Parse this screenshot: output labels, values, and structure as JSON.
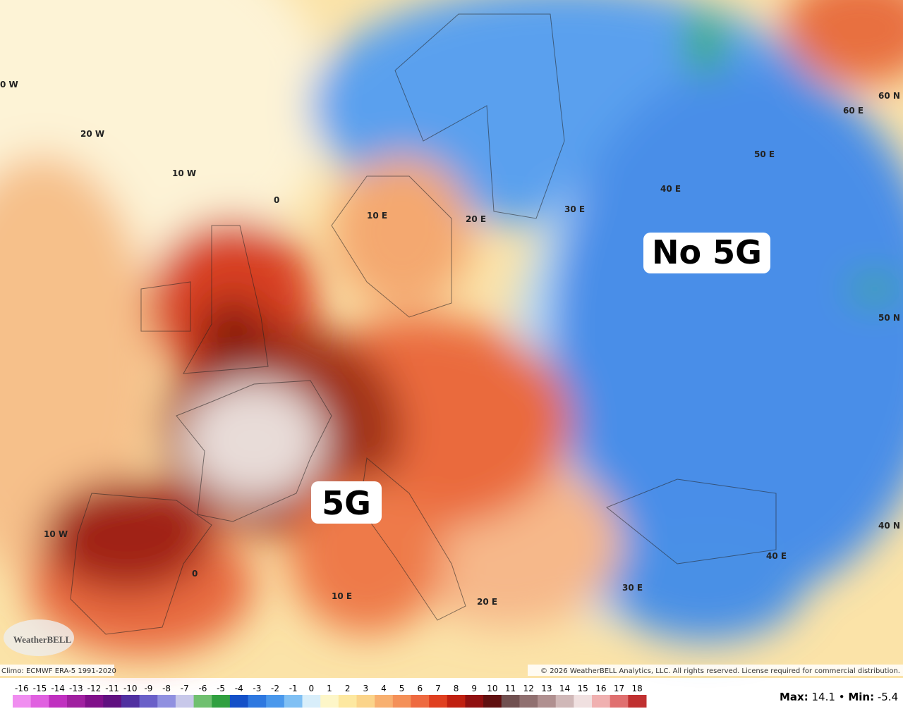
{
  "map": {
    "grid_labels": [
      "0 W",
      "20 W",
      "10 W",
      "0",
      "10 E",
      "20 E",
      "30 E",
      "40 E",
      "50 E",
      "60 E",
      "60 N",
      "50 N",
      "40 N",
      "10 W",
      "0",
      "10 E",
      "20 E",
      "30 E",
      "40 E"
    ],
    "annotations": [
      "No 5G",
      "5G"
    ],
    "logo": "WeatherBELL",
    "climo": "Climo: ECMWF ERA-5 1991-2020",
    "copyright": "© 2026 WeatherBELL Analytics, LLC. All rights reserved. License required for commercial distribution."
  },
  "colorbar": {
    "ticks": [
      -16,
      -15,
      -14,
      -13,
      -12,
      -11,
      -10,
      -9,
      -8,
      -7,
      -6,
      -5,
      -4,
      -3,
      -2,
      -1,
      0,
      1,
      2,
      3,
      4,
      5,
      6,
      7,
      8,
      9,
      10,
      11,
      12,
      13,
      14,
      15,
      16,
      17,
      18
    ],
    "colors": [
      "#f08ef0",
      "#e060e0",
      "#c030c0",
      "#a020a0",
      "#80108a",
      "#601080",
      "#5030a0",
      "#6a60c8",
      "#9090e0",
      "#c8c8ea",
      "#70c070",
      "#30a040",
      "#1450c8",
      "#2e78e0",
      "#4a98ec",
      "#80c0f4",
      "#d8eefa",
      "#fdf6c8",
      "#fde8a0",
      "#fbd48a",
      "#f8b070",
      "#f49058",
      "#ee6a40",
      "#e04020",
      "#c02010",
      "#901010",
      "#601010",
      "#705050",
      "#907070",
      "#b09090",
      "#d0b8b8",
      "#f0e0e0",
      "#f0b0b0",
      "#e07070",
      "#c03030"
    ]
  },
  "stats": {
    "max": {
      "label": "Max:",
      "value": 14.1
    },
    "min": {
      "label": "Min:",
      "value": -5.4
    }
  }
}
